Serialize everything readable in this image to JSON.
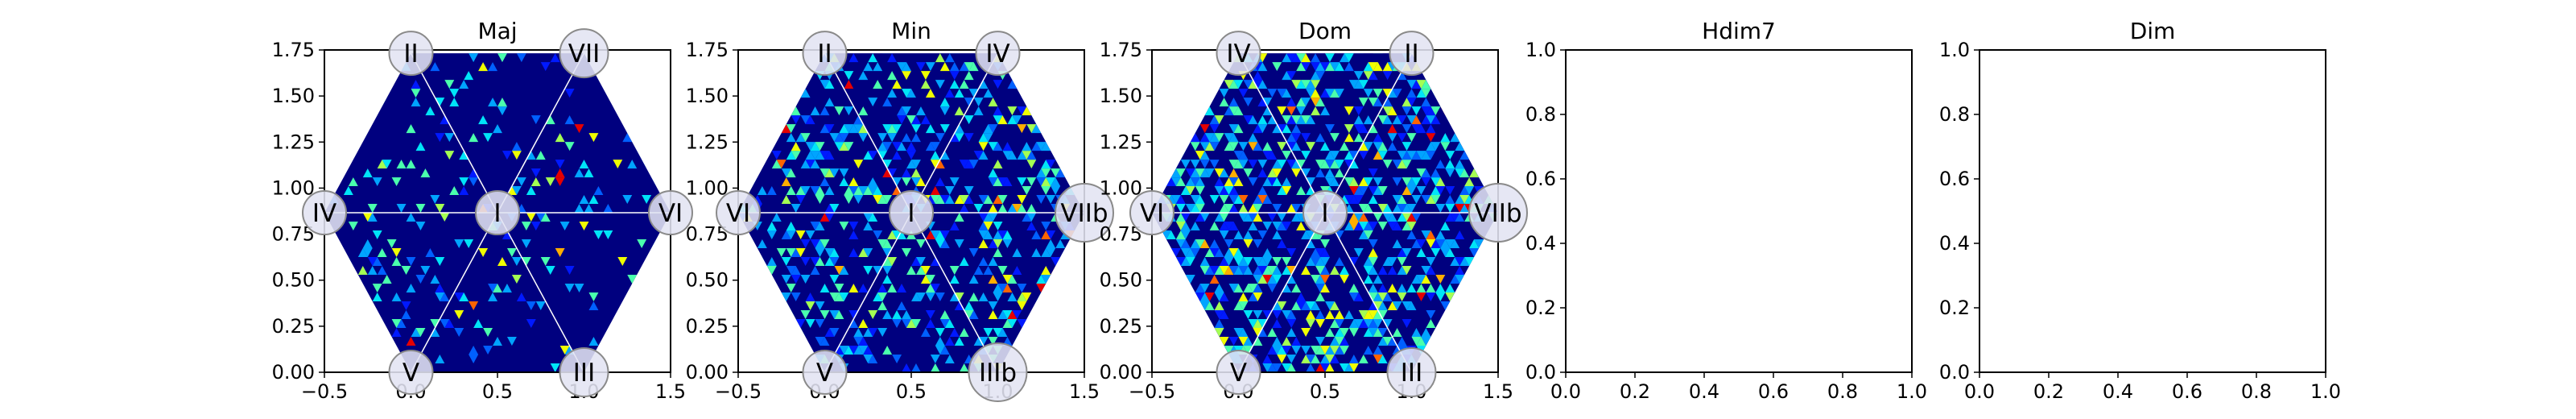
{
  "chart_data": [
    {
      "type": "heatmap",
      "title": "Maj",
      "xlim": [
        -0.5,
        1.5
      ],
      "ylim": [
        0.0,
        1.75
      ],
      "xticks": [
        "−0.5",
        "0.0",
        "0.5",
        "1.0",
        "1.5"
      ],
      "yticks": [
        "0.00",
        "0.25",
        "0.50",
        "0.75",
        "1.00",
        "1.25",
        "1.50",
        "1.75"
      ],
      "grid": false,
      "hexagon": true,
      "colormap": "jet",
      "density_note": "sparse triangular-cell density inside hexagon, hottest near centre-right",
      "vertex_labels": [
        {
          "label": "I",
          "x": 0.5,
          "y": 0.866
        },
        {
          "label": "II",
          "x": 0.0,
          "y": 1.732
        },
        {
          "label": "VII",
          "x": 1.0,
          "y": 1.732
        },
        {
          "label": "IV",
          "x": -0.5,
          "y": 0.866
        },
        {
          "label": "VI",
          "x": 1.5,
          "y": 0.866
        },
        {
          "label": "V",
          "x": 0.0,
          "y": 0.0
        },
        {
          "label": "III",
          "x": 1.0,
          "y": 0.0
        }
      ]
    },
    {
      "type": "heatmap",
      "title": "Min",
      "xlim": [
        -0.5,
        1.5
      ],
      "ylim": [
        0.0,
        1.75
      ],
      "xticks": [
        "−0.5",
        "0.0",
        "0.5",
        "1.0",
        "1.5"
      ],
      "yticks": [
        "0.00",
        "0.25",
        "0.50",
        "0.75",
        "1.00",
        "1.25",
        "1.50",
        "1.75"
      ],
      "grid": false,
      "hexagon": true,
      "colormap": "jet",
      "density_note": "moderate density across hexagon",
      "vertex_labels": [
        {
          "label": "I",
          "x": 0.5,
          "y": 0.866
        },
        {
          "label": "II",
          "x": 0.0,
          "y": 1.732
        },
        {
          "label": "IV",
          "x": 1.0,
          "y": 1.732
        },
        {
          "label": "VI",
          "x": -0.5,
          "y": 0.866
        },
        {
          "label": "VIIb",
          "x": 1.5,
          "y": 0.866
        },
        {
          "label": "V",
          "x": 0.0,
          "y": 0.0
        },
        {
          "label": "IIIb",
          "x": 1.0,
          "y": 0.0
        }
      ]
    },
    {
      "type": "heatmap",
      "title": "Dom",
      "xlim": [
        -0.5,
        1.5
      ],
      "ylim": [
        0.0,
        1.75
      ],
      "xticks": [
        "−0.5",
        "0.0",
        "0.5",
        "1.0",
        "1.5"
      ],
      "yticks": [
        "0.00",
        "0.25",
        "0.50",
        "0.75",
        "1.00",
        "1.25",
        "1.50",
        "1.75"
      ],
      "grid": false,
      "hexagon": true,
      "colormap": "jet",
      "density_note": "dense density across hexagon",
      "vertex_labels": [
        {
          "label": "I",
          "x": 0.5,
          "y": 0.866
        },
        {
          "label": "IV",
          "x": 0.0,
          "y": 1.732
        },
        {
          "label": "II",
          "x": 1.0,
          "y": 1.732
        },
        {
          "label": "VI",
          "x": -0.5,
          "y": 0.866
        },
        {
          "label": "VIIb",
          "x": 1.5,
          "y": 0.866
        },
        {
          "label": "V",
          "x": 0.0,
          "y": 0.0
        },
        {
          "label": "III",
          "x": 1.0,
          "y": 0.0
        }
      ]
    },
    {
      "type": "scatter",
      "title": "Hdim7",
      "xlim": [
        0.0,
        1.0
      ],
      "ylim": [
        0.0,
        1.0
      ],
      "xticks": [
        "0.0",
        "0.2",
        "0.4",
        "0.6",
        "0.8",
        "1.0"
      ],
      "yticks": [
        "0.0",
        "0.2",
        "0.4",
        "0.6",
        "0.8",
        "1.0"
      ],
      "grid": false,
      "hexagon": false,
      "series": []
    },
    {
      "type": "scatter",
      "title": "Dim",
      "xlim": [
        0.0,
        1.0
      ],
      "ylim": [
        0.0,
        1.0
      ],
      "xticks": [
        "0.0",
        "0.2",
        "0.4",
        "0.6",
        "0.8",
        "1.0"
      ],
      "yticks": [
        "0.0",
        "0.2",
        "0.4",
        "0.6",
        "0.8",
        "1.0"
      ],
      "grid": false,
      "hexagon": false,
      "series": []
    }
  ],
  "colors": {
    "background_low": "#00007f",
    "axis": "#000000",
    "label_circle_fill": "#dde0f0",
    "label_circle_stroke": "#888888",
    "divider_lines": "#ffffff"
  }
}
